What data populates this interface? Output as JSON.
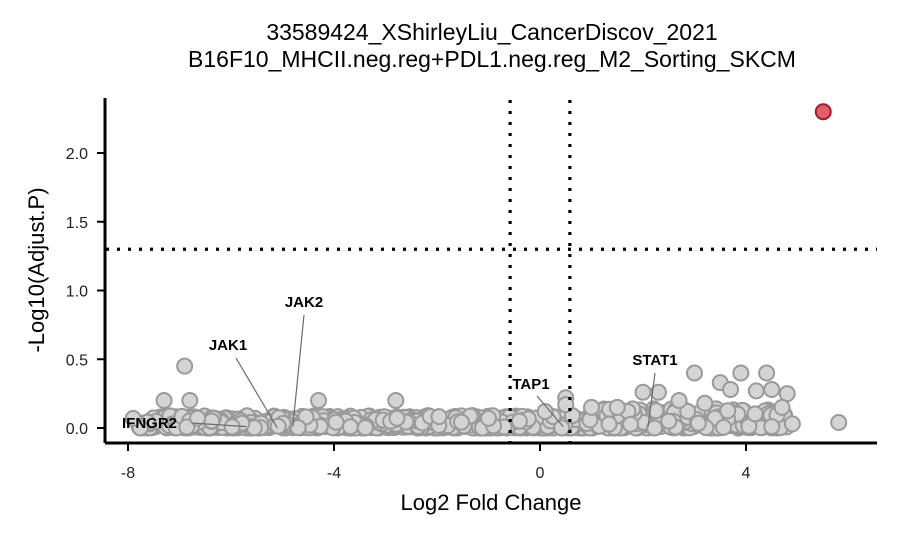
{
  "chart_data": {
    "type": "scatter",
    "title": "33589424_XShirleyLiu_CancerDiscov_2021",
    "subtitle": "B16F10_MHCII.neg.reg+PDL1.neg.reg_M2_Sorting_SKCM",
    "xlabel": "Log2 Fold Change",
    "ylabel": "-Log10(Adjust.P)",
    "xlim": [
      -8.4,
      6.5
    ],
    "ylim": [
      -0.1,
      2.4
    ],
    "x_ticks": [
      -8,
      -4,
      0,
      4
    ],
    "x_tick_labels": [
      "-8",
      "-4",
      "0",
      "4"
    ],
    "y_ticks": [
      0,
      0.5,
      1,
      1.5,
      2
    ],
    "y_tick_labels": [
      "0.0",
      "0.5",
      "1.0",
      "1.5",
      "2.0"
    ],
    "thresholds": {
      "vertical_lines": [
        -0.58,
        0.58
      ],
      "horizontal_line": 1.3
    },
    "grid": false,
    "legend": "none",
    "colors": {
      "point_gray_fill": "#d4d4d4",
      "point_gray_stroke": "#9a9a9a",
      "point_sig_fill": "#e35d6a",
      "point_sig_stroke": "#a01e2a",
      "threshold_line": "#000000"
    },
    "points_significant": [
      {
        "x": 5.5,
        "y": 2.3
      }
    ],
    "points_nonsignificant": [
      {
        "x": -6.9,
        "y": 0.45
      },
      {
        "x": -7.3,
        "y": 0.2
      },
      {
        "x": -6.8,
        "y": 0.2
      },
      {
        "x": -4.3,
        "y": 0.2
      },
      {
        "x": -2.8,
        "y": 0.2
      },
      {
        "x": -7.9,
        "y": 0.07
      },
      {
        "x": 3.0,
        "y": 0.4
      },
      {
        "x": 3.5,
        "y": 0.33
      },
      {
        "x": 3.9,
        "y": 0.4
      },
      {
        "x": 4.4,
        "y": 0.4
      },
      {
        "x": 3.7,
        "y": 0.28
      },
      {
        "x": 4.2,
        "y": 0.27
      },
      {
        "x": 4.5,
        "y": 0.28
      },
      {
        "x": 4.8,
        "y": 0.25
      },
      {
        "x": 2.0,
        "y": 0.26
      },
      {
        "x": 2.3,
        "y": 0.26
      },
      {
        "x": 0.5,
        "y": 0.22
      },
      {
        "x": 0.5,
        "y": 0.17
      },
      {
        "x": 0.1,
        "y": 0.12
      },
      {
        "x": 1.0,
        "y": 0.15
      },
      {
        "x": 1.5,
        "y": 0.15
      },
      {
        "x": 2.7,
        "y": 0.2
      },
      {
        "x": 3.2,
        "y": 0.18
      },
      {
        "x": 4.7,
        "y": 0.15
      },
      {
        "x": 4.9,
        "y": 0.03
      },
      {
        "x": 5.8,
        "y": 0.04
      },
      {
        "x": 4.5,
        "y": 0.01
      },
      {
        "x": 2.5,
        "y": 0.05
      },
      {
        "x": -0.4,
        "y": 0.05
      },
      {
        "x": -1.0,
        "y": 0.07
      }
    ],
    "bulk_band": {
      "x_range": [
        -7.8,
        4.8
      ],
      "y_range": [
        0.0,
        0.12
      ]
    },
    "annotations": [
      {
        "label": "IFNGR2",
        "x": -5.7,
        "y": 0.01
      },
      {
        "label": "JAK1",
        "x": -5.1,
        "y": 0.0
      },
      {
        "label": "JAK2",
        "x": -4.8,
        "y": 0.01
      },
      {
        "label": "TAP1",
        "x": 0.45,
        "y": 0.01
      },
      {
        "label": "STAT1",
        "x": 2.1,
        "y": 0.01
      }
    ]
  }
}
